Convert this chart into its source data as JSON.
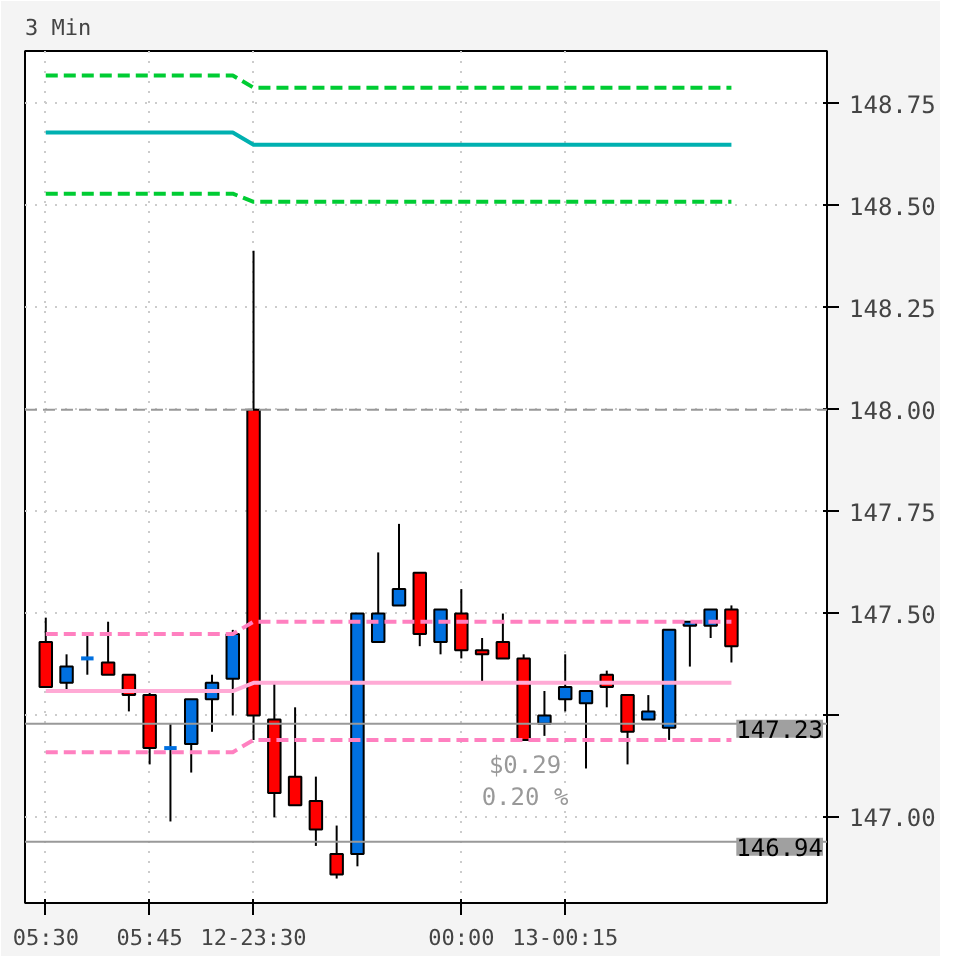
{
  "chart_data": {
    "type": "candlestick",
    "title": "3 Min",
    "categories": [
      "05:30",
      null,
      null,
      null,
      null,
      "05:45",
      null,
      null,
      null,
      null,
      "12-23:30",
      null,
      null,
      null,
      null,
      null,
      null,
      null,
      null,
      null,
      "00:00",
      null,
      null,
      null,
      null,
      "13-00:15",
      null,
      null,
      null,
      null,
      null,
      null,
      null,
      null
    ],
    "ohlc": [
      [
        147.43,
        147.49,
        147.32,
        147.32
      ],
      [
        147.33,
        147.4,
        147.31,
        147.37
      ],
      [
        147.39,
        147.45,
        147.35,
        147.39
      ],
      [
        147.38,
        147.48,
        147.35,
        147.35
      ],
      [
        147.35,
        147.35,
        147.26,
        147.3
      ],
      [
        147.3,
        147.31,
        147.13,
        147.17
      ],
      [
        147.17,
        147.23,
        146.99,
        147.17
      ],
      [
        147.18,
        147.29,
        147.11,
        147.29
      ],
      [
        147.29,
        147.35,
        147.21,
        147.33
      ],
      [
        147.34,
        147.46,
        147.25,
        147.45
      ],
      [
        148.0,
        148.39,
        147.19,
        147.25
      ],
      [
        147.24,
        147.33,
        147.0,
        147.06
      ],
      [
        147.1,
        147.27,
        147.03,
        147.03
      ],
      [
        147.04,
        147.1,
        146.93,
        146.97
      ],
      [
        146.91,
        146.98,
        146.85,
        146.86
      ],
      [
        146.91,
        147.5,
        146.88,
        147.5
      ],
      [
        147.43,
        147.65,
        147.43,
        147.5
      ],
      [
        147.52,
        147.72,
        147.52,
        147.56
      ],
      [
        147.6,
        147.6,
        147.42,
        147.45
      ],
      [
        147.43,
        147.51,
        147.4,
        147.51
      ],
      [
        147.5,
        147.56,
        147.39,
        147.41
      ],
      [
        147.41,
        147.44,
        147.33,
        147.4
      ],
      [
        147.43,
        147.5,
        147.39,
        147.39
      ],
      [
        147.39,
        147.4,
        147.19,
        147.19
      ],
      [
        147.23,
        147.31,
        147.2,
        147.25
      ],
      [
        147.29,
        147.4,
        147.26,
        147.32
      ],
      [
        147.28,
        147.31,
        147.12,
        147.31
      ],
      [
        147.35,
        147.36,
        147.27,
        147.32
      ],
      [
        147.3,
        147.3,
        147.13,
        147.21
      ],
      [
        147.24,
        147.3,
        147.24,
        147.26
      ],
      [
        147.22,
        147.46,
        147.19,
        147.46
      ],
      [
        147.47,
        147.48,
        147.37,
        147.48
      ],
      [
        147.47,
        147.51,
        147.44,
        147.51
      ],
      [
        147.51,
        147.52,
        147.38,
        147.42
      ]
    ],
    "colors": [
      "#ff0000",
      "#0070e0",
      "#0070e0",
      "#ff0000",
      "#ff0000",
      "#ff0000",
      "#0070e0",
      "#0070e0",
      "#0070e0",
      "#0070e0",
      "#ff0000",
      "#ff0000",
      "#ff0000",
      "#ff0000",
      "#ff0000",
      "#0070e0",
      "#0070e0",
      "#0070e0",
      "#ff0000",
      "#0070e0",
      "#ff0000",
      "#ff0000",
      "#ff0000",
      "#ff0000",
      "#0070e0",
      "#0070e0",
      "#0070e0",
      "#ff0000",
      "#ff0000",
      "#0070e0",
      "#0070e0",
      "#0070e0",
      "#0070e0",
      "#ff0000"
    ],
    "series": [
      {
        "type": "line",
        "line_style": "dashed",
        "color": "#00cc33",
        "values": [
          148.82,
          148.82,
          148.82,
          148.82,
          148.82,
          148.82,
          148.82,
          148.82,
          148.82,
          148.82,
          148.79,
          148.79,
          148.79,
          148.79,
          148.79,
          148.79,
          148.79,
          148.79,
          148.79,
          148.79,
          148.79,
          148.79,
          148.79,
          148.79,
          148.79,
          148.79,
          148.79,
          148.79,
          148.79,
          148.79,
          148.79,
          148.79,
          148.79,
          148.79
        ]
      },
      {
        "type": "line",
        "line_style": "solid",
        "color": "#00b0b0",
        "values": [
          148.68,
          148.68,
          148.68,
          148.68,
          148.68,
          148.68,
          148.68,
          148.68,
          148.68,
          148.68,
          148.65,
          148.65,
          148.65,
          148.65,
          148.65,
          148.65,
          148.65,
          148.65,
          148.65,
          148.65,
          148.65,
          148.65,
          148.65,
          148.65,
          148.65,
          148.65,
          148.65,
          148.65,
          148.65,
          148.65,
          148.65,
          148.65,
          148.65,
          148.65
        ]
      },
      {
        "type": "line",
        "line_style": "dashed",
        "color": "#00cc33",
        "values": [
          148.53,
          148.53,
          148.53,
          148.53,
          148.53,
          148.53,
          148.53,
          148.53,
          148.53,
          148.53,
          148.51,
          148.51,
          148.51,
          148.51,
          148.51,
          148.51,
          148.51,
          148.51,
          148.51,
          148.51,
          148.51,
          148.51,
          148.51,
          148.51,
          148.51,
          148.51,
          148.51,
          148.51,
          148.51,
          148.51,
          148.51,
          148.51,
          148.51,
          148.51
        ]
      },
      {
        "type": "line",
        "line_style": "dashed",
        "color": "#ff80c0",
        "values": [
          147.45,
          147.45,
          147.45,
          147.45,
          147.45,
          147.45,
          147.45,
          147.45,
          147.45,
          147.45,
          147.48,
          147.48,
          147.48,
          147.48,
          147.48,
          147.48,
          147.48,
          147.48,
          147.48,
          147.48,
          147.48,
          147.48,
          147.48,
          147.48,
          147.48,
          147.48,
          147.48,
          147.48,
          147.48,
          147.48,
          147.48,
          147.48,
          147.48,
          147.48
        ]
      },
      {
        "type": "line",
        "line_style": "solid",
        "color": "#ffaad5",
        "values": [
          147.31,
          147.31,
          147.31,
          147.31,
          147.31,
          147.31,
          147.31,
          147.31,
          147.31,
          147.31,
          147.33,
          147.33,
          147.33,
          147.33,
          147.33,
          147.33,
          147.33,
          147.33,
          147.33,
          147.33,
          147.33,
          147.33,
          147.33,
          147.33,
          147.33,
          147.33,
          147.33,
          147.33,
          147.33,
          147.33,
          147.33,
          147.33,
          147.33,
          147.33
        ]
      },
      {
        "type": "line",
        "line_style": "dashed",
        "color": "#ff80c0",
        "values": [
          147.16,
          147.16,
          147.16,
          147.16,
          147.16,
          147.16,
          147.16,
          147.16,
          147.16,
          147.16,
          147.19,
          147.19,
          147.19,
          147.19,
          147.19,
          147.19,
          147.19,
          147.19,
          147.19,
          147.19,
          147.19,
          147.19,
          147.19,
          147.19,
          147.19,
          147.19,
          147.19,
          147.19,
          147.19,
          147.19,
          147.19,
          147.19,
          147.19,
          147.19
        ]
      }
    ],
    "ref_lines": [
      {
        "axis": "y",
        "value": 148.0,
        "color": "#999999",
        "line_style": "dashed"
      },
      {
        "axis": "y",
        "value": 147.23,
        "label": "147.23",
        "color": "#999999",
        "line_style": "solid"
      },
      {
        "axis": "y",
        "value": 146.94,
        "label": "146.94",
        "color": "#999999",
        "line_style": "solid"
      }
    ],
    "annotations": [
      "$0.29",
      "0.20 %"
    ],
    "ylim": [
      146.79,
      148.88
    ],
    "yticks": [
      {
        "value": 147.0,
        "label": "147.00"
      },
      {
        "value": 147.25,
        "label": null
      },
      {
        "value": 147.5,
        "label": "147.50"
      },
      {
        "value": 147.75,
        "label": "147.75"
      },
      {
        "value": 148.0,
        "label": "148.00"
      },
      {
        "value": 148.25,
        "label": "148.25"
      },
      {
        "value": 148.5,
        "label": "148.50"
      },
      {
        "value": 148.75,
        "label": "148.75"
      }
    ],
    "grid": true
  }
}
